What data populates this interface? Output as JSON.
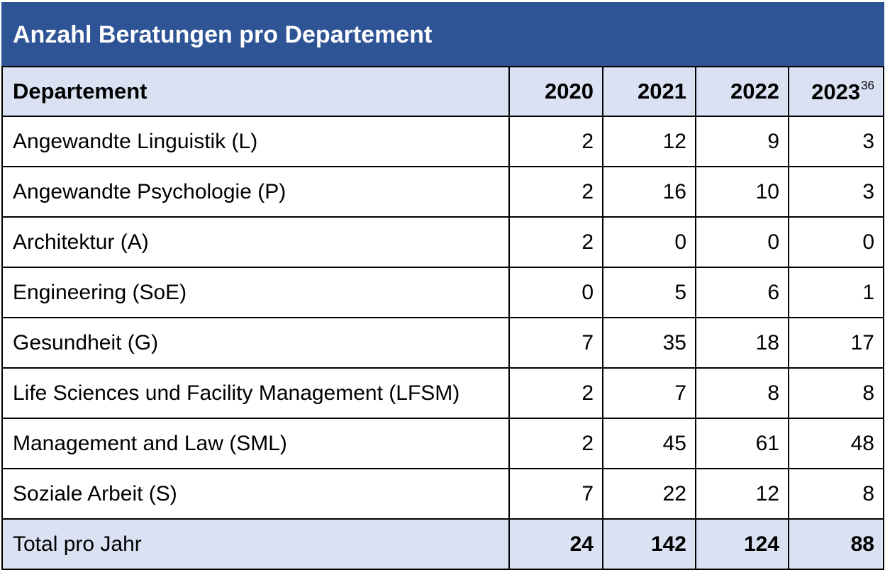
{
  "table": {
    "title": "Anzahl Beratungen pro Departement",
    "header": {
      "departement": "Departement",
      "y2020": "2020",
      "y2021": "2021",
      "y2022": "2022",
      "y2023": "2023",
      "y2023_footnote": "36"
    },
    "rows": [
      {
        "name": "Angewandte Linguistik (L)",
        "v2020": "2",
        "v2021": "12",
        "v2022": "9",
        "v2023": "3"
      },
      {
        "name": "Angewandte Psychologie (P)",
        "v2020": "2",
        "v2021": "16",
        "v2022": "10",
        "v2023": "3"
      },
      {
        "name": "Architektur (A)",
        "v2020": "2",
        "v2021": "0",
        "v2022": "0",
        "v2023": "0"
      },
      {
        "name": "Engineering (SoE)",
        "v2020": "0",
        "v2021": "5",
        "v2022": "6",
        "v2023": "1"
      },
      {
        "name": "Gesundheit (G)",
        "v2020": "7",
        "v2021": "35",
        "v2022": "18",
        "v2023": "17"
      },
      {
        "name": "Life Sciences und Facility Management (LFSM)",
        "v2020": "2",
        "v2021": "7",
        "v2022": "8",
        "v2023": "8"
      },
      {
        "name": "Management and Law (SML)",
        "v2020": "2",
        "v2021": "45",
        "v2022": "61",
        "v2023": "48"
      },
      {
        "name": "Soziale Arbeit (S)",
        "v2020": "7",
        "v2021": "22",
        "v2022": "12",
        "v2023": "8"
      }
    ],
    "total": {
      "label": "Total pro Jahr",
      "v2020": "24",
      "v2021": "142",
      "v2022": "124",
      "v2023": "88"
    },
    "colors": {
      "title_bg": "#2f5496",
      "header_bg": "#d9e1f2",
      "title_text": "#ffffff"
    }
  }
}
